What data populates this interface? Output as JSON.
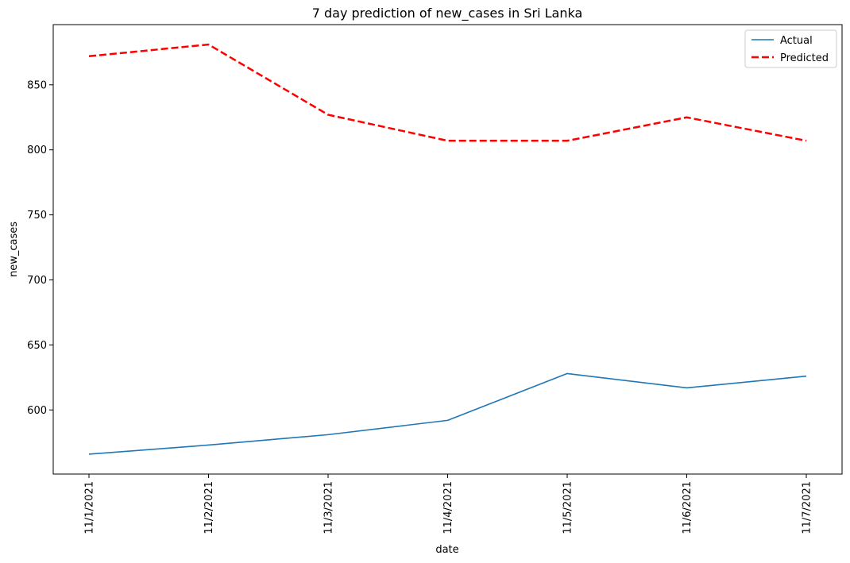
{
  "chart_data": {
    "type": "line",
    "title": "7 day prediction of new_cases in Sri Lanka",
    "xlabel": "date",
    "ylabel": "new_cases",
    "categories": [
      "11/1/2021",
      "11/2/2021",
      "11/3/2021",
      "11/4/2021",
      "11/5/2021",
      "11/6/2021",
      "11/7/2021"
    ],
    "series": [
      {
        "name": "Actual",
        "values": [
          566,
          573,
          581,
          592,
          628,
          617,
          626
        ],
        "color": "#1f77b4",
        "style": "solid"
      },
      {
        "name": "Predicted",
        "values": [
          872,
          881,
          827,
          807,
          807,
          825,
          807
        ],
        "color": "#ff0000",
        "style": "dashed"
      }
    ],
    "yticks": [
      600,
      650,
      700,
      750,
      800,
      850
    ],
    "ylim": [
      550.7,
      896.3
    ],
    "grid": false,
    "legend": "top-right"
  }
}
